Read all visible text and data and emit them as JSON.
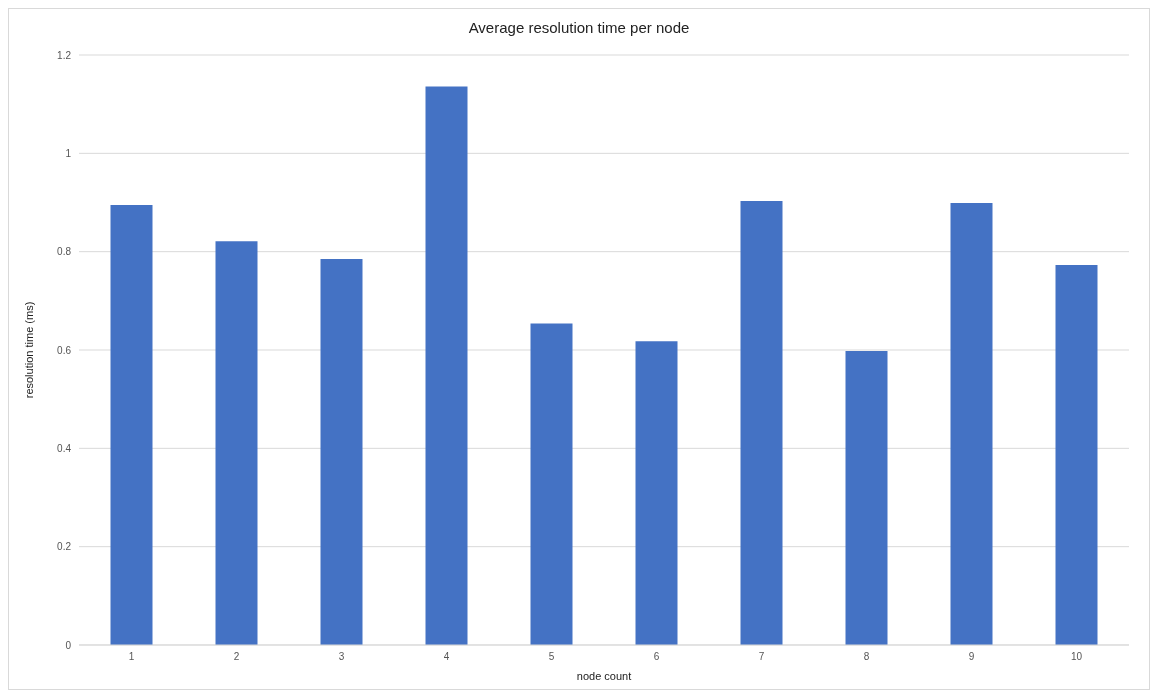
{
  "chart_data": {
    "type": "bar",
    "title": "Average resolution time per node",
    "xlabel": "node count",
    "ylabel": "resolution time (ms)",
    "categories": [
      "1",
      "2",
      "3",
      "4",
      "5",
      "6",
      "7",
      "8",
      "9",
      "10"
    ],
    "values": [
      0.895,
      0.821,
      0.785,
      1.136,
      0.654,
      0.618,
      0.903,
      0.598,
      0.899,
      0.773
    ],
    "color": "#4472c4",
    "ylim": [
      0,
      1.2
    ],
    "yticks": [
      0,
      0.2,
      0.4,
      0.6,
      0.8,
      1,
      1.2
    ],
    "grid": "y"
  }
}
